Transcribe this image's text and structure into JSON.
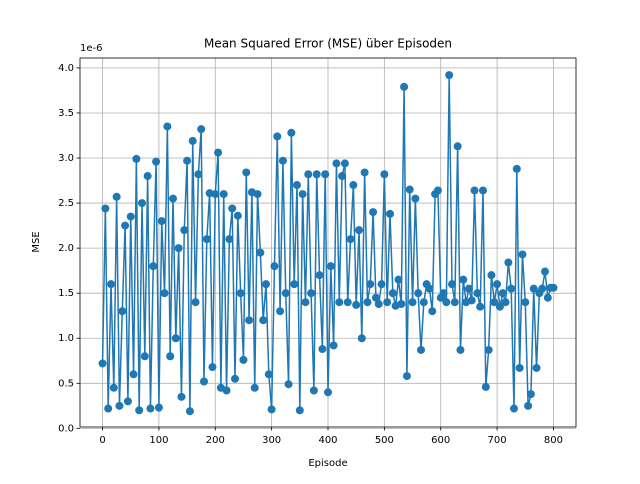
{
  "chart_data": {
    "type": "line",
    "title": "Mean Squared Error (MSE) über Episoden",
    "xlabel": "Episode",
    "ylabel": "MSE",
    "y_offset_label": "1e-6",
    "grid": true,
    "xlim": [
      -40,
      840
    ],
    "xticks": [
      0,
      100,
      200,
      300,
      400,
      500,
      600,
      700,
      800
    ],
    "ylim": [
      0.015,
      4.11
    ],
    "yticks": [
      {
        "value": 0,
        "label": "0.0"
      },
      0.5,
      {
        "value": 1,
        "label": "1.0"
      },
      1.5,
      {
        "value": 2,
        "label": "2.0"
      },
      2.5,
      {
        "value": 3,
        "label": "3.0"
      },
      3.5,
      {
        "value": 4,
        "label": "4.0"
      }
    ],
    "x": [
      0,
      5,
      10,
      15,
      20,
      25,
      30,
      35,
      40,
      45,
      50,
      55,
      60,
      65,
      70,
      75,
      80,
      85,
      90,
      95,
      100,
      105,
      110,
      115,
      120,
      125,
      130,
      135,
      140,
      145,
      150,
      155,
      160,
      165,
      170,
      175,
      180,
      185,
      190,
      195,
      200,
      205,
      210,
      215,
      220,
      225,
      230,
      235,
      240,
      245,
      250,
      255,
      260,
      265,
      270,
      275,
      280,
      285,
      290,
      295,
      300,
      305,
      310,
      315,
      320,
      325,
      330,
      335,
      340,
      345,
      350,
      355,
      360,
      365,
      370,
      375,
      380,
      385,
      390,
      395,
      400,
      405,
      410,
      415,
      420,
      425,
      430,
      435,
      440,
      445,
      450,
      455,
      460,
      465,
      470,
      475,
      480,
      485,
      490,
      495,
      500,
      505,
      510,
      515,
      520,
      525,
      530,
      535,
      540,
      545,
      550,
      555,
      560,
      565,
      570,
      575,
      580,
      585,
      590,
      595,
      600,
      605,
      610,
      615,
      620,
      625,
      630,
      635,
      640,
      645,
      650,
      655,
      660,
      665,
      670,
      675,
      680,
      685,
      690,
      695,
      700,
      705,
      710,
      715,
      720,
      725,
      730,
      735,
      740,
      745,
      750,
      755,
      760,
      765,
      770,
      775,
      780,
      785,
      790,
      795,
      800
    ],
    "series": [
      {
        "name": "MSE",
        "color": "#1f77b4",
        "values": [
          0.72,
          2.44,
          0.22,
          1.6,
          0.45,
          2.57,
          0.25,
          1.3,
          2.25,
          0.3,
          2.35,
          0.6,
          2.99,
          0.2,
          2.5,
          0.8,
          2.8,
          0.22,
          1.8,
          2.96,
          0.23,
          2.3,
          1.5,
          3.35,
          0.8,
          2.55,
          1.0,
          2.0,
          0.35,
          2.2,
          2.97,
          0.19,
          3.19,
          1.4,
          2.82,
          3.32,
          0.52,
          2.1,
          2.61,
          0.68,
          2.6,
          3.06,
          0.45,
          2.6,
          0.42,
          2.1,
          2.44,
          0.55,
          2.36,
          1.5,
          0.76,
          2.84,
          1.2,
          2.62,
          0.45,
          2.6,
          1.95,
          1.2,
          1.6,
          0.6,
          0.21,
          1.8,
          3.24,
          1.3,
          2.97,
          1.5,
          0.49,
          3.28,
          1.6,
          2.7,
          0.2,
          2.6,
          1.4,
          2.82,
          1.5,
          0.42,
          2.82,
          1.7,
          0.88,
          2.82,
          0.4,
          1.8,
          0.92,
          2.94,
          1.4,
          2.8,
          2.94,
          1.4,
          2.1,
          2.7,
          1.37,
          2.2,
          1.0,
          2.84,
          1.4,
          1.6,
          2.4,
          1.45,
          1.38,
          1.6,
          2.82,
          1.4,
          2.38,
          1.5,
          1.36,
          1.65,
          1.38,
          3.79,
          0.58,
          2.65,
          1.4,
          2.55,
          1.5,
          0.87,
          1.4,
          1.6,
          1.55,
          1.3,
          2.6,
          2.64,
          1.45,
          1.5,
          1.4,
          3.92,
          1.6,
          1.4,
          3.13,
          0.87,
          1.65,
          1.4,
          1.55,
          1.42,
          2.64,
          1.5,
          1.35,
          2.64,
          0.46,
          0.87,
          1.7,
          1.4,
          1.6,
          1.35,
          1.5,
          1.4,
          1.84,
          1.55,
          0.22,
          2.88,
          0.67,
          1.93,
          1.4,
          0.25,
          0.38,
          1.55,
          0.67,
          1.5,
          1.55,
          1.74,
          1.45,
          1.56,
          1.56
        ]
      }
    ]
  }
}
